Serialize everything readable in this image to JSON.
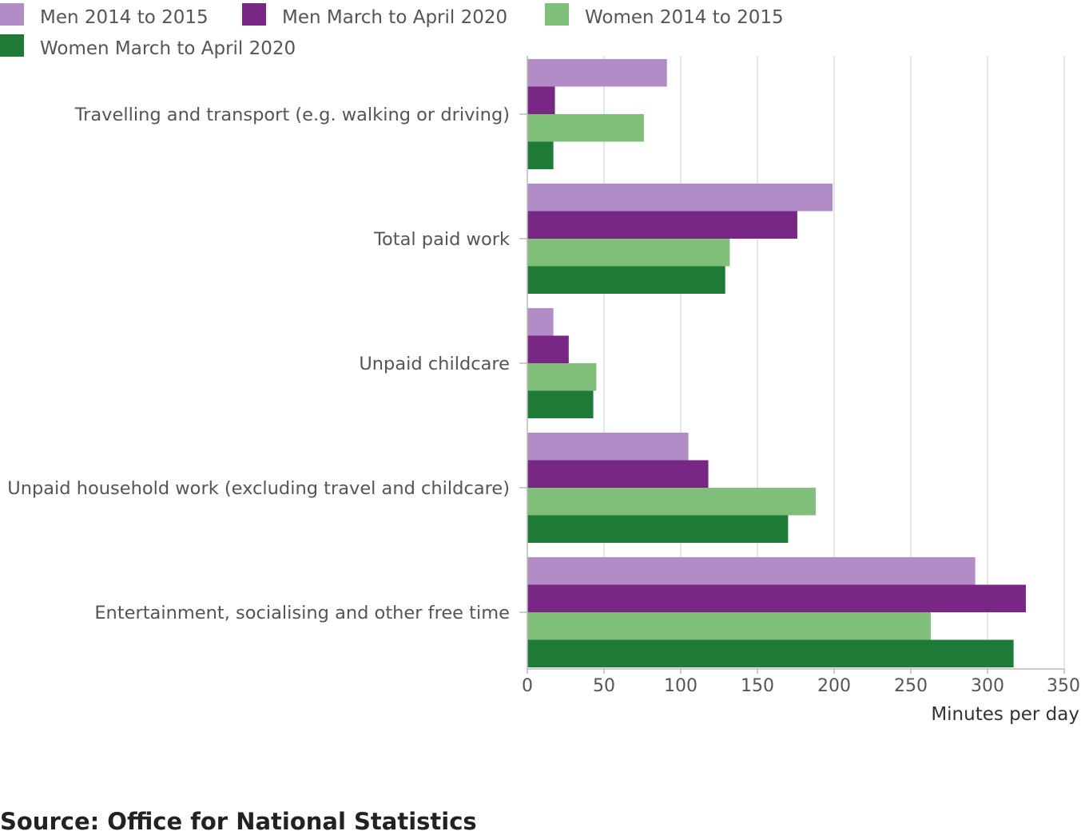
{
  "chart_data": {
    "type": "bar",
    "orientation": "horizontal",
    "title": "",
    "xlabel": "Minutes per day",
    "ylabel": "",
    "xlim": [
      0,
      350
    ],
    "x_ticks": [
      0,
      50,
      100,
      150,
      200,
      250,
      300,
      350
    ],
    "grid": true,
    "legend_position": "top-left",
    "categories": [
      "Travelling and transport (e.g. walking or driving)",
      "Total paid work",
      "Unpaid childcare",
      "Unpaid household work (excluding travel and childcare)",
      "Entertainment, socialising and other free time"
    ],
    "series": [
      {
        "name": "Men 2014 to 2015",
        "color": "#b18cc6",
        "values": [
          91,
          199,
          17,
          105,
          292
        ]
      },
      {
        "name": "Men March to April 2020",
        "color": "#782884",
        "values": [
          18,
          176,
          27,
          118,
          325
        ]
      },
      {
        "name": "Women 2014 to 2015",
        "color": "#80bf7a",
        "values": [
          76,
          132,
          45,
          188,
          263
        ]
      },
      {
        "name": "Women March to April 2020",
        "color": "#1e7a36",
        "values": [
          17,
          129,
          43,
          170,
          317
        ]
      }
    ]
  },
  "source": "Source: Office for National Statistics"
}
